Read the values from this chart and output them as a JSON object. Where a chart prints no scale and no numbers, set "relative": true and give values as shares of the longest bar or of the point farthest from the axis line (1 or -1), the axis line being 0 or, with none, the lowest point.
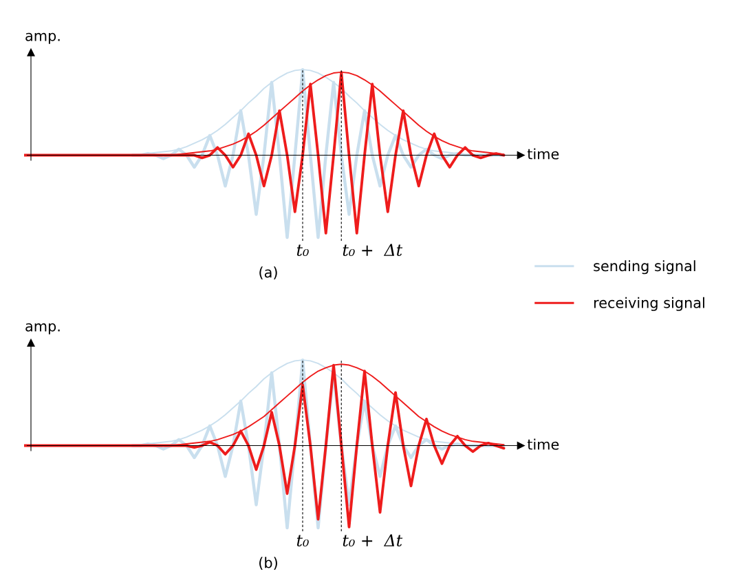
{
  "chart_data": [
    {
      "type": "line",
      "relative": true,
      "tick_labels": false,
      "xlabel": "time",
      "ylabel": "amp.",
      "annotations": [
        "t₀",
        "t₀ +  Δt",
        "(a)"
      ],
      "legend": "right",
      "categories": [
        null,
        null,
        null,
        null,
        null,
        null,
        null,
        null,
        null,
        null,
        null,
        null,
        null,
        null,
        null,
        null,
        null,
        null,
        null,
        null,
        null,
        null,
        null,
        null,
        null,
        null,
        null,
        null,
        null,
        null,
        null,
        null,
        null,
        null,
        null,
        null,
        null,
        null,
        null,
        null,
        null,
        null,
        null,
        null,
        null,
        null,
        null,
        null,
        null,
        null,
        null,
        null,
        null,
        null,
        null,
        null,
        null,
        null,
        null,
        null,
        null,
        null,
        null
      ],
      "series": [
        {
          "name": "sending signal",
          "color": "#c9dfee",
          "values": [
            null,
            null,
            null,
            null,
            null,
            null,
            null,
            null,
            null,
            null,
            null,
            null,
            null,
            null,
            0,
            0,
            0.02,
            0,
            -0.04,
            0,
            0.07,
            0,
            -0.14,
            0,
            0.23,
            0,
            -0.36,
            0,
            0.52,
            0,
            -0.69,
            0,
            0.85,
            0,
            -0.96,
            0,
            1.0,
            0,
            -0.96,
            0,
            0.85,
            0,
            -0.69,
            0,
            0.52,
            0,
            -0.36,
            0,
            0.23,
            0,
            -0.14,
            0,
            0.07,
            0,
            -0.04,
            0,
            0.02,
            0,
            0,
            0,
            0,
            0,
            0
          ]
        },
        {
          "color": "#c9dfee",
          "values": [
            null,
            null,
            null,
            null,
            null,
            null,
            null,
            null,
            null,
            null,
            null,
            null,
            null,
            null,
            0,
            0,
            0.02,
            0.03,
            0.04,
            0.05,
            0.07,
            0.1,
            0.14,
            0.18,
            0.23,
            0.29,
            0.36,
            0.44,
            0.52,
            0.61,
            0.69,
            0.78,
            0.85,
            0.91,
            0.96,
            0.99,
            1.0,
            0.99,
            0.96,
            0.91,
            0.85,
            0.78,
            0.69,
            0.61,
            0.52,
            0.44,
            0.36,
            0.29,
            0.23,
            0.18,
            0.14,
            0.1,
            0.07,
            0.05,
            0.04,
            0.03,
            0.02,
            0,
            0,
            0,
            0,
            0,
            0
          ]
        },
        {
          "name": "receiving signal",
          "color": "#ee1c1c",
          "values": [
            0,
            0,
            0,
            0,
            0,
            0,
            0,
            0,
            0,
            0,
            0,
            0,
            0,
            0,
            0,
            0,
            0,
            0,
            0,
            0,
            0,
            0,
            0,
            -0.03,
            0,
            0.09,
            0,
            -0.14,
            0,
            0.25,
            0,
            -0.36,
            0,
            0.52,
            0,
            -0.66,
            0,
            0.83,
            0,
            -0.91,
            0,
            0.97,
            0,
            -0.91,
            0,
            0.83,
            0,
            -0.66,
            0,
            0.52,
            0,
            -0.36,
            0,
            0.25,
            0,
            -0.14,
            0,
            0.09,
            0,
            -0.03,
            0,
            0.02,
            0
          ]
        },
        {
          "color": "#ee1c1c",
          "values": [
            0,
            0,
            0,
            0,
            0,
            0,
            0,
            0,
            0,
            0,
            0,
            0,
            0,
            0,
            0,
            0,
            0,
            0,
            0,
            0,
            0.01,
            0.02,
            0.03,
            0.04,
            0.05,
            0.07,
            0.1,
            0.13,
            0.17,
            0.22,
            0.28,
            0.35,
            0.43,
            0.51,
            0.59,
            0.67,
            0.75,
            0.82,
            0.88,
            0.93,
            0.96,
            0.97,
            0.96,
            0.93,
            0.88,
            0.82,
            0.75,
            0.67,
            0.59,
            0.51,
            0.43,
            0.35,
            0.28,
            0.22,
            0.17,
            0.13,
            0.1,
            0.07,
            0.05,
            0.04,
            0.03,
            0.02,
            0.01
          ]
        }
      ]
    },
    {
      "type": "line",
      "relative": true,
      "tick_labels": false,
      "xlabel": "time",
      "ylabel": "amp.",
      "annotations": [
        "t₀",
        "t₀ +  Δt",
        "(b)"
      ],
      "categories": [
        null,
        null,
        null,
        null,
        null,
        null,
        null,
        null,
        null,
        null,
        null,
        null,
        null,
        null,
        null,
        null,
        null,
        null,
        null,
        null,
        null,
        null,
        null,
        null,
        null,
        null,
        null,
        null,
        null,
        null,
        null,
        null,
        null,
        null,
        null,
        null,
        null,
        null,
        null,
        null,
        null,
        null,
        null,
        null,
        null,
        null,
        null,
        null,
        null,
        null,
        null,
        null,
        null,
        null,
        null,
        null,
        null,
        null,
        null,
        null,
        null,
        null,
        null
      ],
      "series": [
        {
          "color": "#c9dfee",
          "values": [
            null,
            null,
            null,
            null,
            null,
            null,
            null,
            null,
            null,
            null,
            null,
            null,
            null,
            null,
            0,
            0,
            0.02,
            0,
            -0.04,
            0,
            0.07,
            0,
            -0.14,
            0,
            0.23,
            0,
            -0.36,
            0,
            0.52,
            0,
            -0.69,
            0,
            0.85,
            0,
            -0.96,
            0,
            1.0,
            0,
            -0.96,
            0,
            0.85,
            0,
            -0.69,
            0,
            0.52,
            0,
            -0.36,
            0,
            0.23,
            0,
            -0.14,
            0,
            0.07,
            0,
            -0.04,
            0,
            0.02,
            0,
            0,
            0,
            0,
            0,
            0
          ]
        },
        {
          "color": "#c9dfee",
          "values": [
            null,
            null,
            null,
            null,
            null,
            null,
            null,
            null,
            null,
            null,
            null,
            null,
            null,
            null,
            0,
            0,
            0.02,
            0.03,
            0.04,
            0.05,
            0.07,
            0.1,
            0.14,
            0.18,
            0.23,
            0.29,
            0.36,
            0.44,
            0.52,
            0.61,
            0.69,
            0.78,
            0.85,
            0.91,
            0.96,
            0.99,
            1.0,
            0.99,
            0.96,
            0.91,
            0.85,
            0.78,
            0.69,
            0.61,
            0.52,
            0.44,
            0.36,
            0.29,
            0.23,
            0.18,
            0.14,
            0.1,
            0.07,
            0.05,
            0.04,
            0.03,
            0.02,
            0,
            0,
            0,
            0,
            0,
            0
          ]
        },
        {
          "color": "#ee1c1c",
          "values": [
            0,
            0,
            0,
            0,
            0,
            0,
            0,
            0,
            0,
            0,
            0,
            0,
            0,
            0,
            0,
            0,
            0,
            0,
            0,
            0,
            0,
            0,
            -0.02,
            0,
            0.04,
            0,
            -0.1,
            0,
            0.17,
            0,
            -0.28,
            0,
            0.39,
            0,
            -0.56,
            0,
            0.71,
            0,
            -0.86,
            0,
            0.94,
            0,
            -0.95,
            0,
            0.87,
            0,
            -0.78,
            0,
            0.62,
            0,
            -0.47,
            0,
            0.31,
            0,
            -0.21,
            0,
            0.11,
            0,
            -0.07,
            0,
            0.03,
            0,
            -0.03
          ]
        },
        {
          "color": "#ee1c1c",
          "values": [
            0,
            0,
            0,
            0,
            0,
            0,
            0,
            0,
            0,
            0,
            0,
            0,
            0,
            0,
            0,
            0,
            0,
            0,
            0,
            0,
            0.01,
            0.02,
            0.03,
            0.04,
            0.05,
            0.07,
            0.1,
            0.13,
            0.17,
            0.22,
            0.28,
            0.34,
            0.42,
            0.5,
            0.58,
            0.66,
            0.74,
            0.81,
            0.87,
            0.91,
            0.94,
            0.95,
            0.94,
            0.91,
            0.87,
            0.81,
            0.74,
            0.66,
            0.58,
            0.5,
            0.42,
            0.34,
            0.28,
            0.22,
            0.17,
            0.13,
            0.1,
            0.07,
            0.05,
            0.04,
            0.03,
            0.02,
            0.01
          ]
        }
      ]
    }
  ]
}
